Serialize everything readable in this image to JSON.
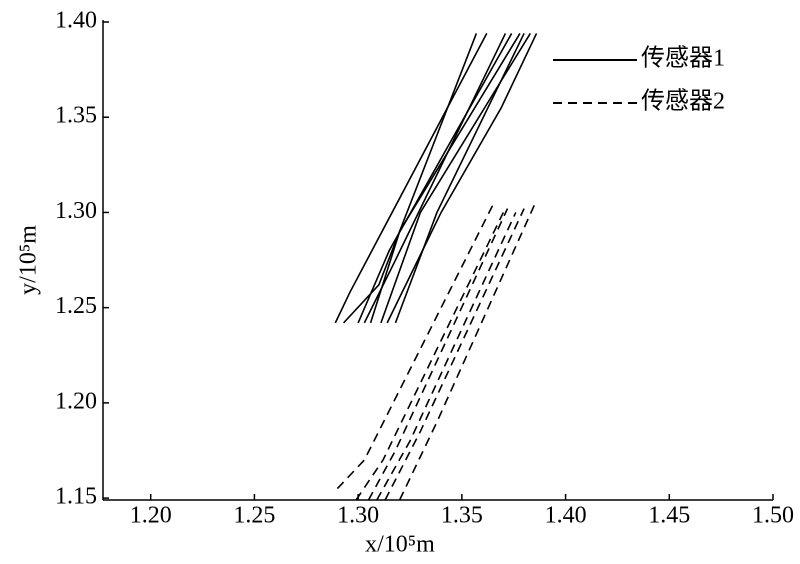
{
  "chart_data": {
    "type": "line",
    "xlabel": "x/10⁵m",
    "ylabel": "y/10⁵m",
    "xlim": [
      1.177,
      1.5
    ],
    "ylim": [
      1.149,
      1.4
    ],
    "xticks": [
      {
        "value": 1.2,
        "label": "1.20"
      },
      1.25,
      {
        "value": 1.3,
        "label": "1.30"
      },
      1.35,
      {
        "value": 1.4,
        "label": "1.40"
      },
      1.45,
      {
        "value": 1.5,
        "label": "1.50"
      }
    ],
    "yticks": [
      1.15,
      {
        "value": 1.2,
        "label": "1.20"
      },
      1.25,
      {
        "value": 1.3,
        "label": "1.30"
      },
      1.35,
      {
        "value": 1.4,
        "label": "1.40"
      }
    ],
    "legend": "upper right",
    "series": [
      {
        "name": "传感器1",
        "color": "#000000",
        "dash": "solid",
        "tracks": [
          {
            "x": [
              1.289,
              1.296,
              1.362
            ],
            "y": [
              1.242,
              1.258,
              1.394
            ]
          },
          {
            "x": [
              1.293,
              1.31,
              1.357
            ],
            "y": [
              1.242,
              1.262,
              1.394
            ]
          },
          {
            "x": [
              1.3,
              1.315,
              1.374
            ],
            "y": [
              1.242,
              1.28,
              1.394
            ]
          },
          {
            "x": [
              1.303,
              1.318,
              1.371
            ],
            "y": [
              1.242,
              1.275,
              1.394
            ]
          },
          {
            "x": [
              1.306,
              1.32,
              1.378
            ],
            "y": [
              1.242,
              1.29,
              1.394
            ]
          },
          {
            "x": [
              1.311,
              1.33,
              1.383
            ],
            "y": [
              1.242,
              1.3,
              1.394
            ]
          },
          {
            "x": [
              1.314,
              1.34,
              1.369,
              1.386
            ],
            "y": [
              1.242,
              1.3,
              1.355,
              1.394
            ]
          },
          {
            "x": [
              1.318,
              1.338,
              1.38
            ],
            "y": [
              1.242,
              1.3,
              1.394
            ]
          }
        ]
      },
      {
        "name": "传感器2",
        "color": "#000000",
        "dash": "dashed",
        "tracks": [
          {
            "x": [
              1.29,
              1.303,
              1.365
            ],
            "y": [
              1.155,
              1.17,
              1.304
            ]
          },
          {
            "x": [
              1.299,
              1.312,
              1.37
            ],
            "y": [
              1.149,
              1.17,
              1.3
            ]
          },
          {
            "x": [
              1.305,
              1.318,
              1.372
            ],
            "y": [
              1.149,
              1.175,
              1.302
            ]
          },
          {
            "x": [
              1.309,
              1.325,
              1.376
            ],
            "y": [
              1.149,
              1.18,
              1.3
            ]
          },
          {
            "x": [
              1.313,
              1.33,
              1.38
            ],
            "y": [
              1.149,
              1.185,
              1.302
            ]
          },
          {
            "x": [
              1.32,
              1.338,
              1.385
            ],
            "y": [
              1.149,
              1.19,
              1.304
            ]
          }
        ]
      }
    ]
  }
}
